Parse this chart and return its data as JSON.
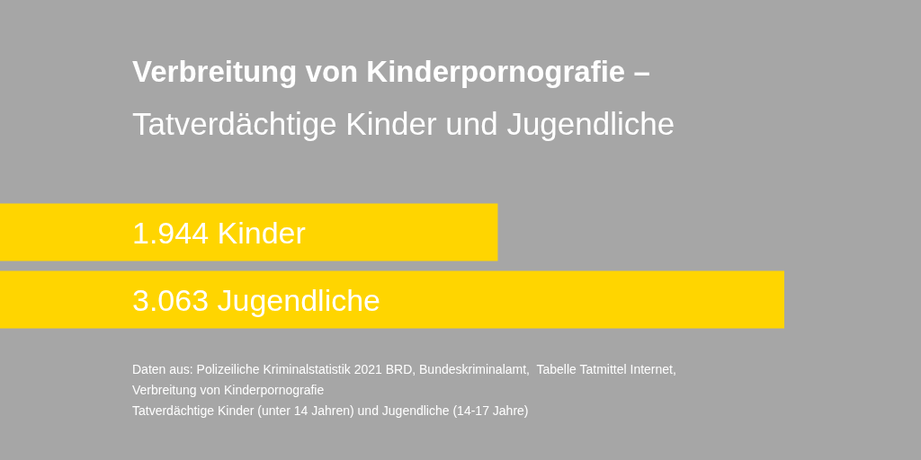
{
  "chart_data": {
    "type": "bar",
    "orientation": "horizontal",
    "title": "Verbreitung von Kinderpornografie –",
    "subtitle": "Tatverdächtige Kinder und Jugendliche",
    "categories": [
      null,
      null
    ],
    "values": [
      1944,
      3063
    ],
    "value_labels": [
      "1.944 Kinder",
      "3.063 Jugendliche"
    ],
    "color": "#ffd500",
    "annotations": [
      "Daten aus: Polizeiliche Kriminalstatistik 2021 BRD, Bundeskriminalamt,  Tabelle Tatmittel Internet,",
      "Verbreitung von Kinderpornografie",
      "Tatverdächtige Kinder (unter 14 Jahren) und Jugendliche (14-17 Jahre)"
    ],
    "data_labels": false
  }
}
